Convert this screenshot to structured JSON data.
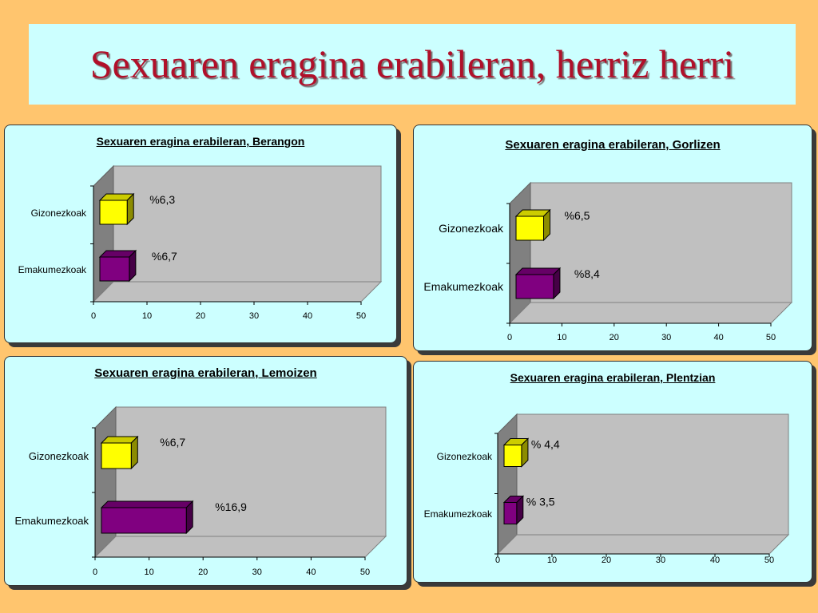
{
  "slide": {
    "title": "Sexuaren eragina erabileran, herriz herri"
  },
  "colors": {
    "male": "#FFFF00",
    "female": "#800080",
    "panel": "#CCFFFF",
    "background": "#FFC56E"
  },
  "chart_data": [
    {
      "type": "bar",
      "orientation": "horizontal",
      "title": "Sexuaren eragina erabileran, Berangon",
      "categories": [
        "Gizonezkoak",
        "Emakumezkoak"
      ],
      "values": [
        6.3,
        6.7
      ],
      "data_labels": [
        "%6,3",
        "%6,7"
      ],
      "xlim": [
        0,
        50
      ],
      "xticks": [
        "0",
        "10",
        "20",
        "30",
        "40",
        "50"
      ]
    },
    {
      "type": "bar",
      "orientation": "horizontal",
      "title": "Sexuaren eragina erabileran, Gorlizen",
      "categories": [
        "Gizonezkoak",
        "Emakumezkoak"
      ],
      "values": [
        6.5,
        8.4
      ],
      "data_labels": [
        "%6,5",
        "%8,4"
      ],
      "xlim": [
        0,
        50
      ],
      "xticks": [
        "0",
        "10",
        "20",
        "30",
        "40",
        "50"
      ]
    },
    {
      "type": "bar",
      "orientation": "horizontal",
      "title": "Sexuaren eragina erabileran, Lemoizen",
      "categories": [
        "Gizonezkoak",
        "Emakumezkoak"
      ],
      "values": [
        6.7,
        16.9
      ],
      "data_labels": [
        "%6,7",
        "%16,9"
      ],
      "xlim": [
        0,
        50
      ],
      "xticks": [
        "0",
        "10",
        "20",
        "30",
        "40",
        "50"
      ]
    },
    {
      "type": "bar",
      "orientation": "horizontal",
      "title": "Sexuaren eragina erabileran, Plentzian",
      "categories": [
        "Gizonezkoak",
        "Emakumezkoak"
      ],
      "values": [
        4.4,
        3.5
      ],
      "data_labels": [
        "% 4,4",
        "% 3,5"
      ],
      "xlim": [
        0,
        50
      ],
      "xticks": [
        "0",
        "10",
        "20",
        "30",
        "40",
        "50"
      ]
    }
  ]
}
